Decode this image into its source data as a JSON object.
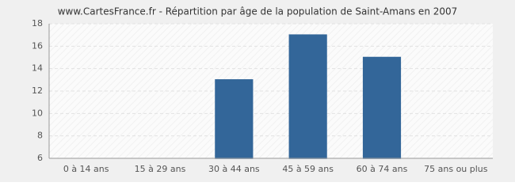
{
  "chart_data": {
    "type": "bar",
    "title": "www.CartesFrance.fr - Répartition par âge de la population de Saint-Amans en 2007",
    "categories": [
      "0 à 14 ans",
      "15 à 29 ans",
      "30 à 44 ans",
      "45 à 59 ans",
      "60 à 74 ans",
      "75 ans ou plus"
    ],
    "values": [
      6,
      6,
      13,
      17,
      15,
      6
    ],
    "color": "#336699",
    "ylim": [
      6,
      18
    ],
    "yticks": [
      6,
      8,
      10,
      12,
      14,
      16,
      18
    ],
    "grid": true
  }
}
